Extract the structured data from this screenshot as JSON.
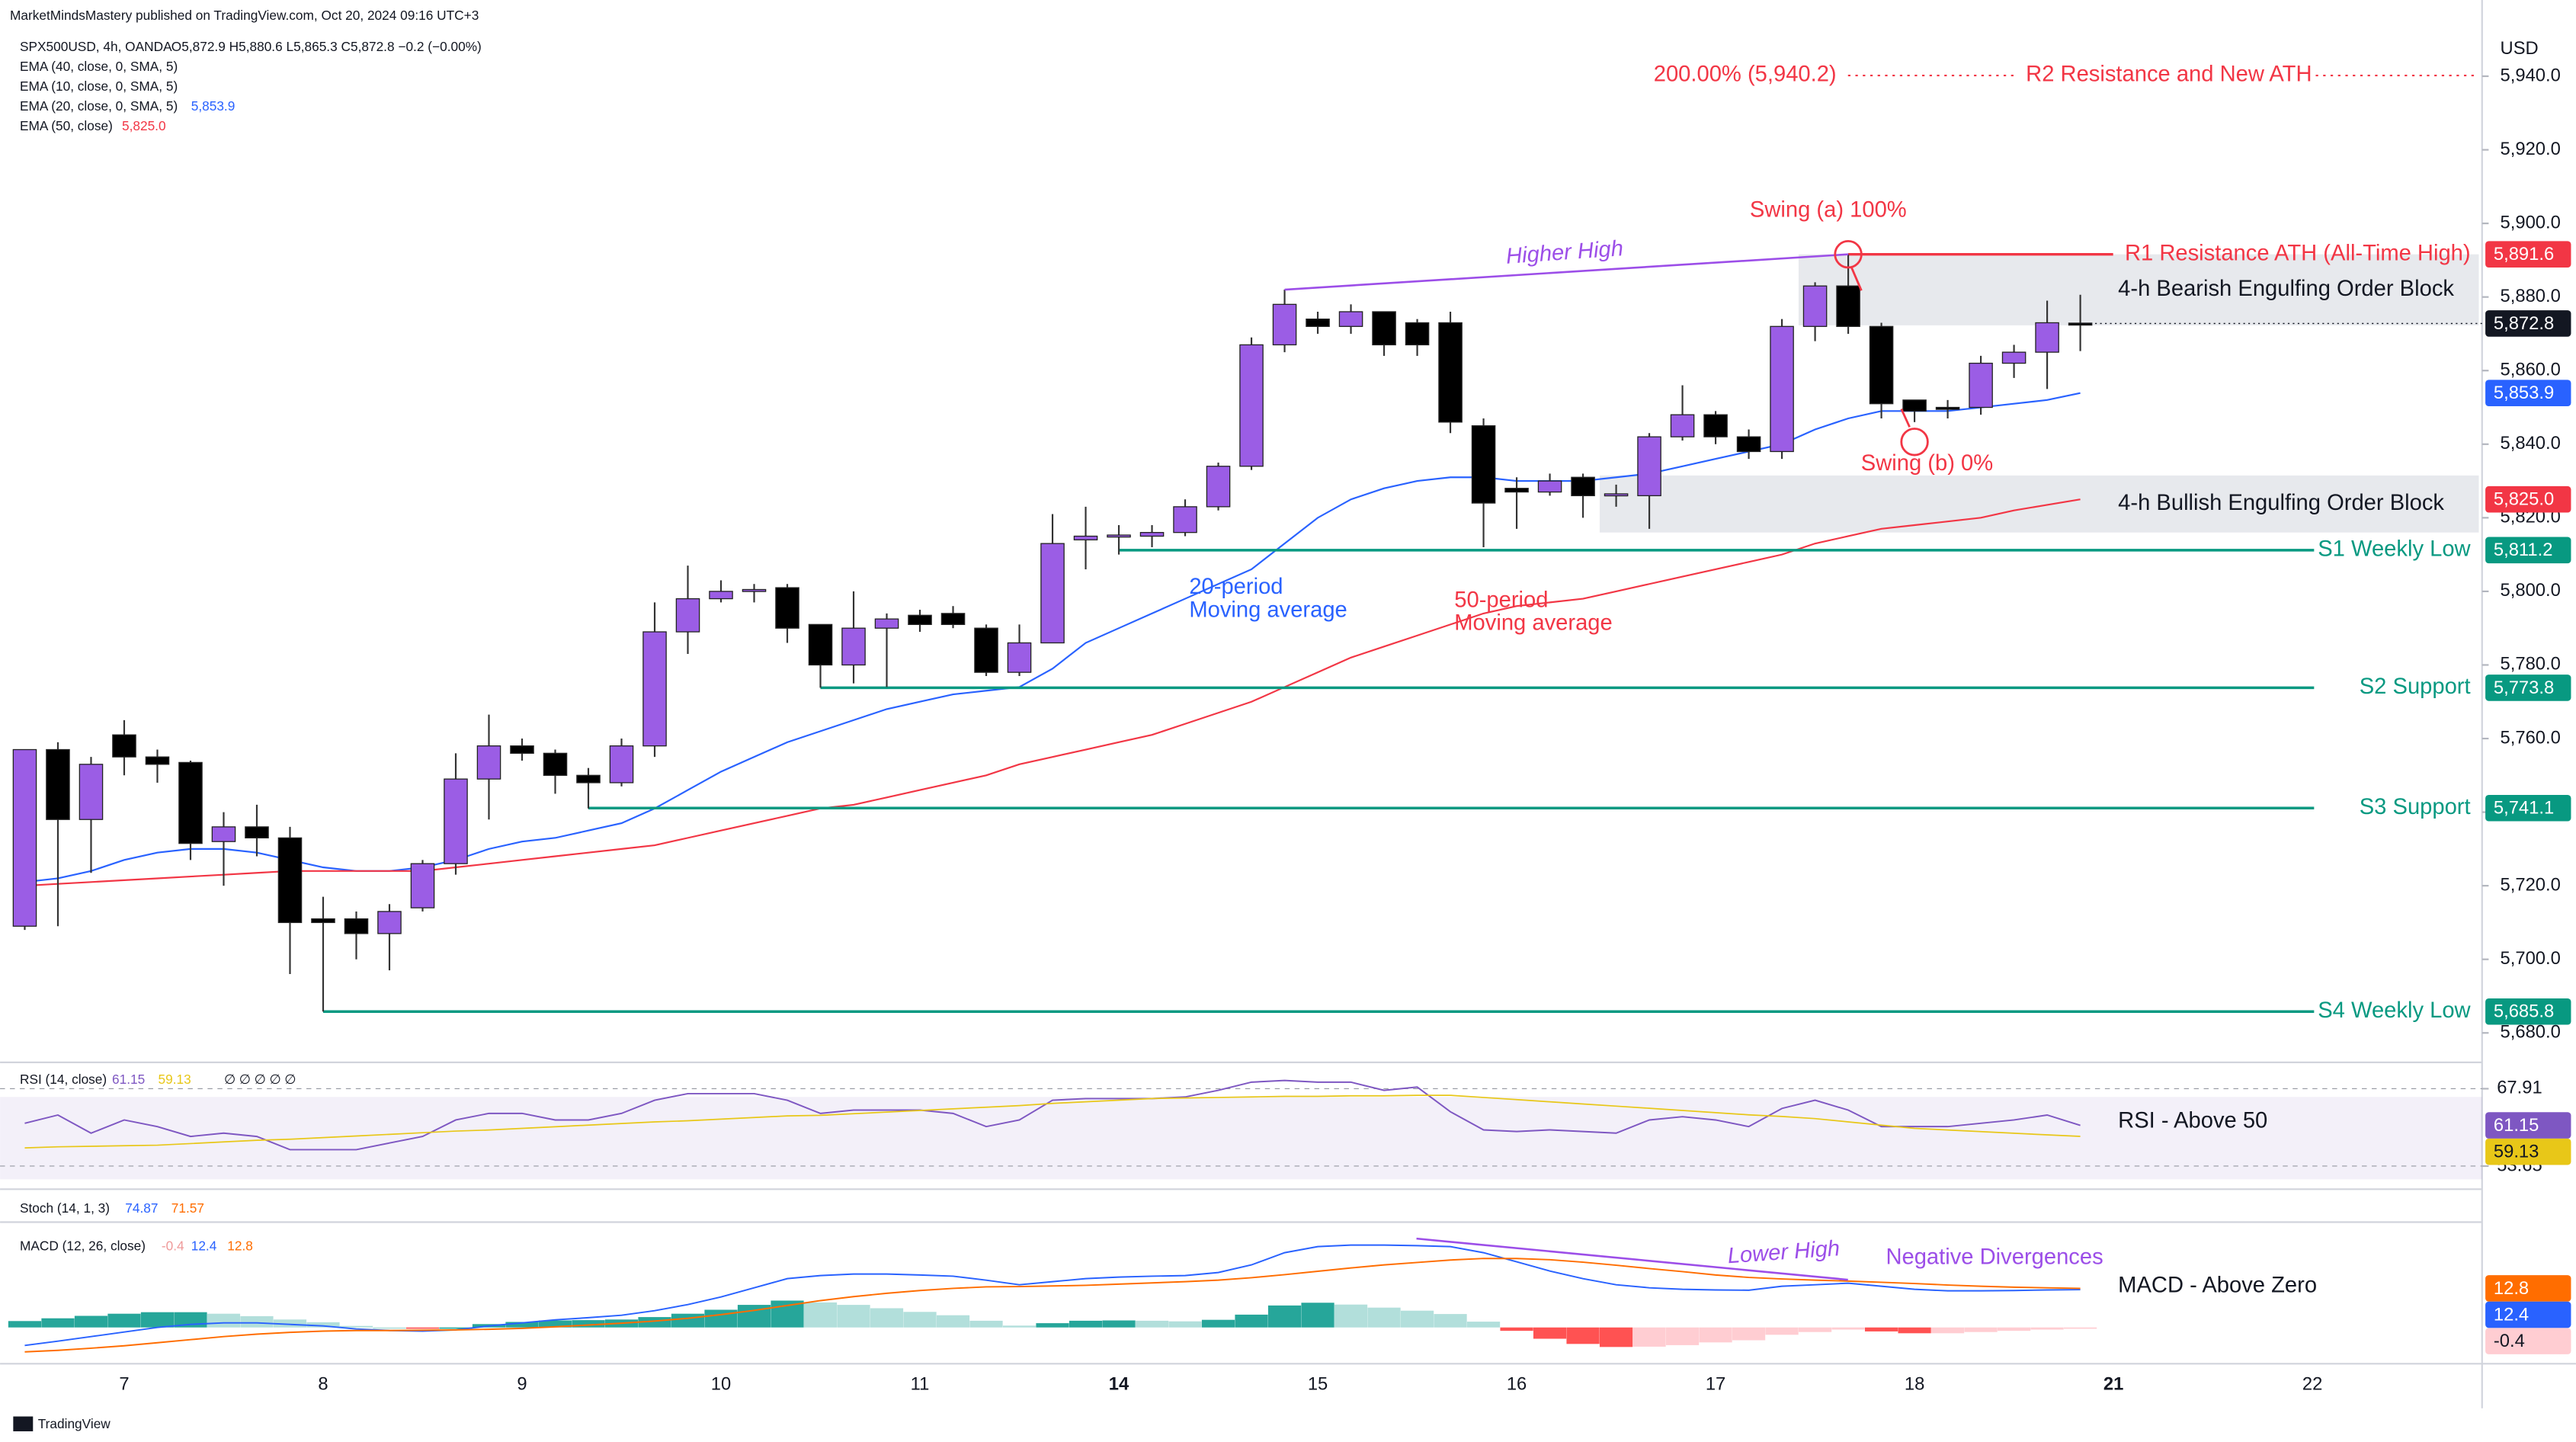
{
  "header": "MarketMindsMastery published on TradingView.com, Oct 20, 2024 09:16 UTC+3",
  "footer": "TradingView",
  "chart_data": [
    {
      "type": "candlestick",
      "symbol": "SPX500USD, 4h, OANDA",
      "ohlc": "O5,872.9 H5,880.6 L5,865.3 C5,872.8 −0.2 (−0.00%)",
      "axis_unit": "USD",
      "indicator_legend": [
        "EMA (40, close, 0, SMA, 5)",
        "EMA (10, close, 0, SMA, 5)"
      ],
      "x_labels": [
        "7",
        "8",
        "9",
        "10",
        "11",
        "14",
        "15",
        "16",
        "17",
        "18",
        "21",
        "22"
      ],
      "up_color": "#9b5de5",
      "down_color": "#000000",
      "open": [
        5709,
        5757,
        5738,
        5761,
        5755,
        5753.5,
        5732,
        5736,
        5733,
        5711,
        5711,
        5707,
        5714,
        5726,
        5749,
        5758,
        5756,
        5750,
        5748,
        5758,
        5789,
        5798,
        5800,
        5801,
        5791,
        5780,
        5790,
        5793.5,
        5794,
        5790,
        5778,
        5786,
        5814,
        5815,
        5815,
        5816,
        5823,
        5834,
        5867,
        5874,
        5872,
        5876,
        5873,
        5873,
        5845,
        5828,
        5827,
        5831,
        5826,
        5826,
        5842,
        5848,
        5842,
        5838,
        5872,
        5883,
        5872,
        5852,
        5850,
        5850,
        5862,
        5865,
        5872.9
      ],
      "high": [
        5757,
        5759,
        5755,
        5765,
        5757,
        5754,
        5740,
        5742,
        5736,
        5717,
        5713,
        5715,
        5727,
        5756,
        5766.5,
        5760,
        5757,
        5752,
        5760,
        5797,
        5807,
        5803,
        5802,
        5802,
        5791,
        5800,
        5794,
        5795,
        5796,
        5791,
        5791,
        5821,
        5823,
        5818,
        5818,
        5825,
        5835,
        5869,
        5882,
        5876,
        5878,
        5876,
        5874,
        5876,
        5847,
        5831,
        5832,
        5832,
        5829,
        5843,
        5856,
        5849,
        5844,
        5874,
        5884,
        5891.6,
        5873,
        5852,
        5852,
        5864,
        5867,
        5879,
        5880.6
      ],
      "low": [
        5708,
        5709,
        5723.5,
        5750,
        5748,
        5727,
        5720,
        5728,
        5696,
        5685.8,
        5700,
        5697,
        5713,
        5723,
        5738,
        5754,
        5745,
        5741,
        5747,
        5755,
        5783,
        5797,
        5797,
        5786,
        5773.8,
        5775,
        5774,
        5789,
        5790,
        5777,
        5777,
        5786,
        5806,
        5810,
        5812,
        5815,
        5822,
        5833,
        5865,
        5870,
        5870,
        5864,
        5864,
        5843,
        5812,
        5817,
        5826,
        5820,
        5823,
        5817,
        5841,
        5840,
        5836,
        5836,
        5868,
        5870,
        5847,
        5846,
        5847,
        5848,
        5858,
        5855,
        5865.3
      ],
      "close": [
        5757,
        5738,
        5753,
        5755,
        5753,
        5731.5,
        5736,
        5733,
        5710,
        5710,
        5707,
        5713,
        5726,
        5749,
        5758,
        5756,
        5750,
        5748,
        5758,
        5789,
        5798,
        5800,
        5800.5,
        5790,
        5780,
        5790,
        5792.5,
        5791,
        5791,
        5778,
        5786,
        5813,
        5815,
        5815.3,
        5816,
        5823,
        5834,
        5867,
        5878,
        5872,
        5876,
        5867,
        5867,
        5846,
        5824,
        5827,
        5830,
        5826,
        5826.5,
        5842,
        5848,
        5842,
        5838,
        5872,
        5883,
        5872,
        5851,
        5849,
        5849.5,
        5862,
        5865,
        5873,
        5872.8
      ],
      "last_price": {
        "value": 5872.8,
        "label": "5,872.8"
      },
      "series": [
        {
          "name": "EMA (20, close, 0, SMA, 5)",
          "color": "#2962ff",
          "last_label": "5,853.9",
          "values": [
            5721,
            5722,
            5724,
            5727,
            5729,
            5730,
            5730,
            5729,
            5727,
            5725,
            5724,
            5724,
            5725,
            5727,
            5730,
            5732,
            5733,
            5735,
            5737,
            5741,
            5746,
            5751,
            5755,
            5759,
            5762,
            5765,
            5768,
            5770,
            5772,
            5773,
            5774,
            5779,
            5786,
            5790,
            5794,
            5798,
            5802,
            5806,
            5813,
            5820,
            5825,
            5828,
            5830,
            5831,
            5831,
            5830,
            5830,
            5830,
            5831,
            5832,
            5834,
            5836,
            5838,
            5840,
            5844,
            5847,
            5849,
            5849,
            5849,
            5850,
            5851,
            5852,
            5853.9
          ]
        },
        {
          "name": "EMA (50, close)",
          "color": "#f23645",
          "last_label": "5,825.0",
          "values": [
            5720,
            5720.5,
            5721,
            5721.5,
            5722,
            5722.5,
            5723,
            5723.5,
            5724,
            5724,
            5724,
            5724,
            5724,
            5725,
            5726,
            5727,
            5728,
            5729,
            5730,
            5731,
            5733,
            5735,
            5737,
            5739,
            5741,
            5742,
            5744,
            5746,
            5748,
            5750,
            5753,
            5755,
            5757,
            5759,
            5761,
            5764,
            5767,
            5770,
            5774,
            5778,
            5782,
            5785,
            5788,
            5791,
            5794,
            5796,
            5797,
            5798,
            5800,
            5802,
            5804,
            5806,
            5808,
            5810,
            5813,
            5815,
            5817,
            5818,
            5819,
            5820,
            5822,
            5823.5,
            5825.0
          ]
        }
      ],
      "levels": [
        {
          "name": "R1 Resistance ATH (All-Time High)",
          "value": 5891.6,
          "value_label": "5,891.6",
          "color": "#f23645"
        },
        {
          "name": "S1 Weekly Low",
          "value": 5811.2,
          "value_label": "5,811.2",
          "color": "#089981"
        },
        {
          "name": "S2 Support",
          "value": 5773.8,
          "value_label": "5,773.8",
          "color": "#089981"
        },
        {
          "name": "S3 Support",
          "value": 5741.1,
          "value_label": "5,741.1",
          "color": "#089981"
        },
        {
          "name": "S4 Weekly Low",
          "value": 5685.8,
          "value_label": "5,685.8",
          "color": "#089981"
        }
      ],
      "target": {
        "name": "R2 Resistance and New ATH",
        "value": 5940.2,
        "label": "200.00% (5,940.2)",
        "color": "#f23645"
      },
      "zones": [
        {
          "name": "4-h Bearish Engulfing Order Block",
          "low": 5872.3,
          "high": 5891.6
        },
        {
          "name": "4-h Bullish Engulfing Order Block",
          "low": 5816,
          "high": 5831.5
        }
      ],
      "annotations": [
        {
          "text": "Higher High",
          "color": "#9c4ee8"
        },
        {
          "text": "Swing (a) 100%",
          "color": "#f23645"
        },
        {
          "text": "Swing (b) 0%",
          "color": "#f23645"
        },
        {
          "text": "20-period",
          "color": "#2962ff"
        },
        {
          "text": "Moving average",
          "color": "#2962ff"
        },
        {
          "text": "50-period",
          "color": "#f23645"
        },
        {
          "text": "Moving average",
          "color": "#f23645"
        }
      ],
      "ylim": [
        5672,
        5954
      ],
      "yticks": [
        {
          "value": 5680,
          "label": "5,680.0"
        },
        {
          "value": 5700,
          "label": "5,700.0"
        },
        {
          "value": 5720,
          "label": "5,720.0"
        },
        {
          "value": 5740,
          "label": "5,740.0"
        },
        {
          "value": 5760,
          "label": "5,760.0"
        },
        {
          "value": 5780,
          "label": "5,780.0"
        },
        {
          "value": 5800,
          "label": "5,800.0"
        },
        {
          "value": 5820,
          "label": "5,820.0"
        },
        {
          "value": 5840,
          "label": "5,840.0"
        },
        {
          "value": 5860,
          "label": "5,860.0"
        },
        {
          "value": 5880,
          "label": "5,880.0"
        },
        {
          "value": 5900,
          "label": "5,900.0"
        },
        {
          "value": 5920,
          "label": "5,920.0"
        },
        {
          "value": 5940,
          "label": "5,940.0"
        }
      ]
    },
    {
      "type": "line",
      "title": "RSI (14, close)",
      "extra": "∅ ∅ ∅ ∅ ∅",
      "annotation": "RSI -  Above 50",
      "series": [
        {
          "name": "RSI",
          "color": "#7e57c2",
          "values": [
            61.54,
            63.06,
            59.72,
            62.15,
            60.93,
            59.11,
            59.72,
            59.11,
            56.68,
            56.68,
            56.68,
            57.9,
            59.11,
            62.15,
            63.36,
            63.36,
            62.15,
            62.15,
            63.36,
            65.79,
            67.0,
            67.0,
            67.0,
            65.79,
            63.36,
            63.97,
            63.97,
            63.97,
            63.36,
            60.93,
            62.15,
            65.79,
            66.09,
            66.09,
            66.09,
            66.39,
            67.61,
            69.12,
            69.43,
            69.12,
            69.12,
            67.61,
            68.21,
            63.66,
            60.32,
            60.02,
            60.32,
            60.02,
            59.72,
            62.15,
            62.75,
            62.15,
            60.93,
            64.27,
            65.79,
            63.97,
            60.93,
            60.93,
            60.93,
            61.54,
            62.15,
            63.06,
            61.15
          ]
        },
        {
          "name": "RSI MA",
          "color": "#e8c718",
          "values": [
            57.0,
            57.2,
            57.3,
            57.4,
            57.5,
            57.8,
            58.1,
            58.4,
            58.6,
            58.9,
            59.2,
            59.5,
            59.8,
            60.1,
            60.3,
            60.6,
            60.9,
            61.2,
            61.5,
            61.8,
            62.0,
            62.3,
            62.6,
            62.9,
            63.0,
            63.3,
            63.6,
            63.9,
            64.2,
            64.5,
            64.8,
            65.2,
            65.5,
            65.8,
            66.1,
            66.2,
            66.3,
            66.4,
            66.5,
            66.5,
            66.6,
            66.6,
            66.7,
            66.7,
            66.3,
            65.9,
            65.5,
            65.1,
            64.7,
            64.3,
            63.9,
            63.5,
            63.1,
            62.8,
            62.4,
            61.8,
            61.2,
            60.6,
            60.3,
            60.0,
            59.7,
            59.4,
            59.13
          ]
        }
      ],
      "ylim": [
        50,
        71.25
      ],
      "yticks": [
        53.65,
        67.91
      ]
    },
    {
      "type": "macd",
      "stoch_title": "Stoch (14, 1, 3)",
      "stoch_values": [
        74.87,
        71.57
      ],
      "title": "MACD (12, 26, close)",
      "annotations": [
        {
          "text": "Lower High",
          "color": "#9c4ee8"
        },
        {
          "text": "Negative Divergences",
          "color": "#9c4ee8"
        },
        {
          "text": "MACD - Above Zero",
          "color": "#131722"
        }
      ],
      "histogram": [
        2.1,
        3.0,
        3.8,
        4.5,
        5.0,
        5.0,
        4.5,
        3.7,
        2.6,
        1.7,
        0.5,
        0.0,
        -0.3,
        0.0,
        1.1,
        1.8,
        2.3,
        2.4,
        2.6,
        3.4,
        4.5,
        5.8,
        7.4,
        8.8,
        8.2,
        7.4,
        6.3,
        5.1,
        4.0,
        2.2,
        0.6,
        1.4,
        2.2,
        2.3,
        2.2,
        2.0,
        2.5,
        4.2,
        7.2,
        8.1,
        7.5,
        6.5,
        5.5,
        4.4,
        1.9,
        -1.1,
        -3.7,
        -5.4,
        -6.4,
        -6.3,
        -5.8,
        -4.9,
        -4.2,
        -2.4,
        -1.5,
        -0.7,
        -1.3,
        -1.9,
        -1.9,
        -1.5,
        -1.1,
        -0.7,
        -0.4
      ],
      "series": [
        {
          "name": "MACD",
          "color": "#2962ff",
          "values": [
            -5.9,
            -4.5,
            -3.0,
            -1.5,
            0.0,
            1.0,
            1.5,
            1.5,
            1.0,
            0.5,
            -0.5,
            -1.0,
            -1.2,
            -0.8,
            0.5,
            1.5,
            2.5,
            3.2,
            4.0,
            5.5,
            7.5,
            10.0,
            13.0,
            16.0,
            17.0,
            17.5,
            17.5,
            17.2,
            16.8,
            15.5,
            14.0,
            15.0,
            16.0,
            16.5,
            16.8,
            17.0,
            18.0,
            20.5,
            24.5,
            26.5,
            27.0,
            27.0,
            26.8,
            26.5,
            24.5,
            21.5,
            18.5,
            16.0,
            14.0,
            13.0,
            12.5,
            12.3,
            12.2,
            13.5,
            14.0,
            14.5,
            13.5,
            12.5,
            12.0,
            12.0,
            12.1,
            12.3,
            12.4
          ]
        },
        {
          "name": "Signal",
          "color": "#ff6d00",
          "values": [
            -8.0,
            -7.5,
            -6.8,
            -6.0,
            -5.0,
            -4.0,
            -3.0,
            -2.2,
            -1.6,
            -1.2,
            -1.0,
            -1.0,
            -0.9,
            -0.8,
            -0.6,
            -0.3,
            0.2,
            0.8,
            1.4,
            2.1,
            3.0,
            4.2,
            5.6,
            7.2,
            8.8,
            10.1,
            11.2,
            12.1,
            12.8,
            13.3,
            13.4,
            13.6,
            13.8,
            14.2,
            14.6,
            15.0,
            15.5,
            16.3,
            17.3,
            18.4,
            19.5,
            20.5,
            21.3,
            22.1,
            22.6,
            22.6,
            22.2,
            21.4,
            20.4,
            19.3,
            18.3,
            17.2,
            16.4,
            15.9,
            15.5,
            15.2,
            14.8,
            14.4,
            13.9,
            13.5,
            13.2,
            13.0,
            12.8
          ]
        }
      ],
      "ylim": [
        -11.9,
        32.9
      ]
    }
  ]
}
